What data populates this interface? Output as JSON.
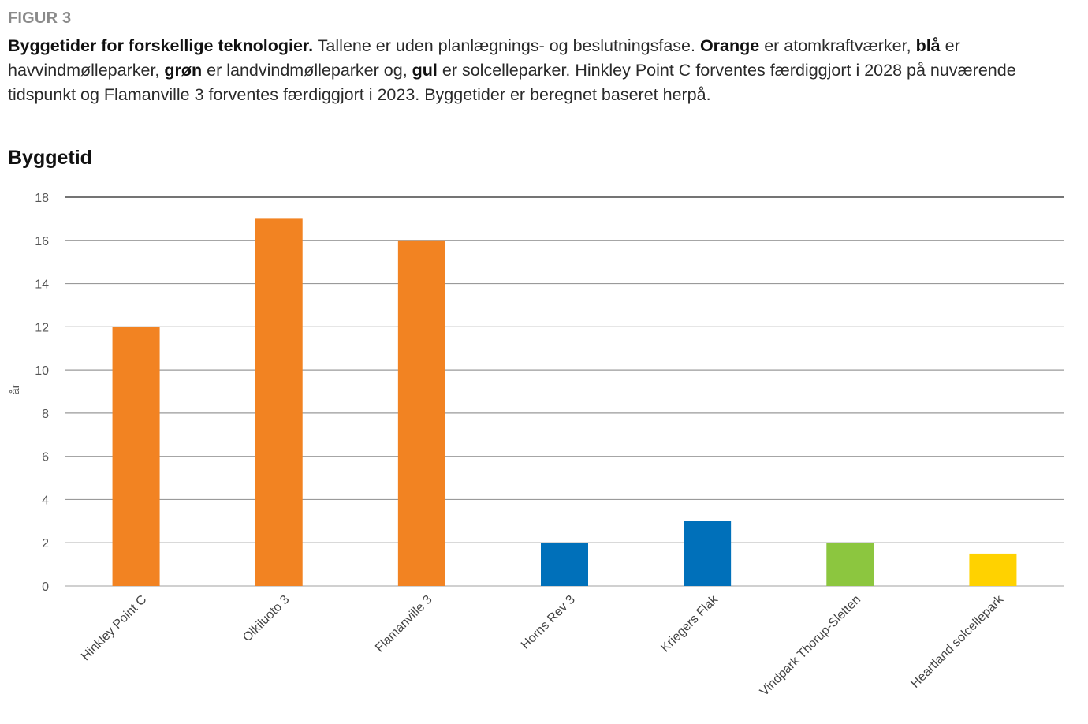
{
  "figure": {
    "label": "FIGUR 3",
    "caption": [
      {
        "text": "Byggetider for forskellige teknologier.",
        "bold": true
      },
      {
        "text": " Tallene er uden planlægnings- og beslutningsfase. ",
        "bold": false
      },
      {
        "text": "Orange",
        "bold": true
      },
      {
        "text": " er atomkraftværker, ",
        "bold": false
      },
      {
        "text": "blå",
        "bold": true
      },
      {
        "text": " er havvindmølleparker, ",
        "bold": false
      },
      {
        "text": "grøn",
        "bold": true
      },
      {
        "text": " er landvindmølleparker og, ",
        "bold": false
      },
      {
        "text": "gul",
        "bold": true
      },
      {
        "text": " er solcelleparker. Hinkley Point C forventes færdiggjort i 2028 på nuværende tidspunkt og Flamanville 3 forventes færdiggjort i 2023. Byggetider er beregnet baseret herpå.",
        "bold": false
      }
    ]
  },
  "chart_data": {
    "type": "bar",
    "title": "Byggetid",
    "xlabel": "",
    "ylabel": "år",
    "ylim": [
      0,
      18
    ],
    "yticks": [
      0,
      2,
      4,
      6,
      8,
      10,
      12,
      14,
      16,
      18
    ],
    "grid": true,
    "legend": "none",
    "categories": [
      "Hinkley Point C",
      "Olkiluoto 3",
      "Flamanville 3",
      "Horns Rev 3",
      "Kriegers Flak",
      "Vindpark Thorup-Sletten",
      "Heartland solcellepark"
    ],
    "values": [
      12,
      17,
      16,
      2,
      3,
      2,
      1.5
    ],
    "bar_colors": [
      "#F28322",
      "#F28322",
      "#F28322",
      "#0070BA",
      "#0070BA",
      "#8CC63F",
      "#FFD200"
    ],
    "color_meaning": {
      "#F28322": "atomkraftværker",
      "#0070BA": "havvindmølleparker",
      "#8CC63F": "landvindmølleparker",
      "#FFD200": "solcelleparker"
    }
  }
}
